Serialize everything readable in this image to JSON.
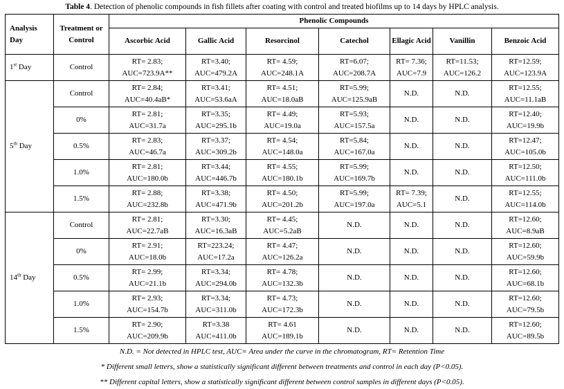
{
  "title": {
    "label": "Table 4",
    "text": ". Detection of phenolic compounds in fish fillets after coating with control and treated biofilms up to 14 days by HPLC analysis."
  },
  "headers": {
    "day": "Analysis Day",
    "treatment": "Treatment or Control",
    "group": "Phenolic Compounds",
    "compounds": [
      "Ascorbic Acid",
      "Gallic Acid",
      "Resorcinol",
      "Catechol",
      "Ellagic Acid",
      "Vanillin",
      "Benzoic Acid"
    ]
  },
  "groups": [
    {
      "day_num": "1",
      "day_sup": "st",
      "day_suffix": " Day",
      "rows": [
        {
          "treatment": "Control",
          "cells": [
            [
              "RT= 2.83;",
              "AUC=723.9A**"
            ],
            [
              "RT=3.40;",
              "AUC=479.2A"
            ],
            [
              "RT= 4.59;",
              "AUC=248.1A"
            ],
            [
              "RT=6.07;",
              "AUC=208.7A"
            ],
            [
              "RT= 7.36;",
              "AUC=7.9"
            ],
            [
              "RT=11.53;",
              "AUC=126.2"
            ],
            [
              "RT=12.59;",
              "AUC=123.9A"
            ]
          ]
        }
      ]
    },
    {
      "day_num": "5",
      "day_sup": "th",
      "day_suffix": " Day",
      "rows": [
        {
          "treatment": "Control",
          "cells": [
            [
              "RT= 2.84;",
              "AUC=40.4aB*"
            ],
            [
              "RT=3.41;",
              "AUC=53.6aA"
            ],
            [
              "RT= 4.51;",
              "AUC=18.0aB"
            ],
            [
              "RT=5.99;",
              "AUC=125.9aB"
            ],
            [
              "N.D."
            ],
            [
              "N.D."
            ],
            [
              "RT=12.55;",
              "AUC=11.1aB"
            ]
          ]
        },
        {
          "treatment": "0%",
          "cells": [
            [
              "RT= 2.81;",
              "AUC=31.7a"
            ],
            [
              "RT=3.35;",
              "AUC=295.1b"
            ],
            [
              "RT= 4.49;",
              "AUC=19.0a"
            ],
            [
              "RT=5.93;",
              "AUC=157.5a"
            ],
            [
              "N.D."
            ],
            [
              "N.D."
            ],
            [
              "RT=12.40;",
              "AUC=19.9b"
            ]
          ]
        },
        {
          "treatment": "0.5%",
          "cells": [
            [
              "RT= 2.83;",
              "AUC=46.7a"
            ],
            [
              "RT=3.37;",
              "AUC=309.2b"
            ],
            [
              "RT= 4.54;",
              "AUC=148.0a"
            ],
            [
              "RT=5.84;",
              "AUC=167.0a"
            ],
            [
              "N.D."
            ],
            [
              "N.D."
            ],
            [
              "RT=12.47;",
              "AUC=105.0b"
            ]
          ]
        },
        {
          "treatment": "1.0%",
          "cells": [
            [
              "RT= 2.81;",
              "AUC=180.0b"
            ],
            [
              "RT=3.44;",
              "AUC=446.7b"
            ],
            [
              "RT= 4.55;",
              "AUC=180.1b"
            ],
            [
              "RT=5.99;",
              "AUC=169.7b"
            ],
            [
              "N.D."
            ],
            [
              "N.D."
            ],
            [
              "RT=12.50;",
              "AUC=111.0b"
            ]
          ]
        },
        {
          "treatment": "1.5%",
          "cells": [
            [
              "RT= 2.88;",
              "AUC=232.8b"
            ],
            [
              "RT=3.38;",
              "AUC=471.9b"
            ],
            [
              "RT= 4.50;",
              "AUC=201.2b"
            ],
            [
              "RT=5.99;",
              "AUC=197.0a"
            ],
            [
              "RT= 7.39;",
              "AUC=5.1"
            ],
            [
              "N.D."
            ],
            [
              "RT=12.55;",
              "AUC=114.0b"
            ]
          ]
        }
      ]
    },
    {
      "day_num": "14",
      "day_sup": "th",
      "day_suffix": " Day",
      "rows": [
        {
          "treatment": "Control",
          "cells": [
            [
              "RT= 2.81;",
              "AUC=22.7aB"
            ],
            [
              "RT=3.30;",
              "AUC=16.3aB"
            ],
            [
              "RT= 4.45;",
              "AUC=5.2aB"
            ],
            [
              "N.D."
            ],
            [
              "N.D."
            ],
            [
              "N.D."
            ],
            [
              "RT=12.60;",
              "AUC=8.9aB"
            ]
          ]
        },
        {
          "treatment": "0%",
          "cells": [
            [
              "RT= 2.91;",
              "AUC=18.0b"
            ],
            [
              "RT=223.24;",
              "AUC=17.2a"
            ],
            [
              "RT= 4.47;",
              "AUC=126.2a"
            ],
            [
              "N.D."
            ],
            [
              "N.D."
            ],
            [
              "N.D."
            ],
            [
              "RT=12.60;",
              "AUC=59.9b"
            ]
          ]
        },
        {
          "treatment": "0.5%",
          "cells": [
            [
              "RT= 2.99;",
              "AUC=21.1b"
            ],
            [
              "RT=3.34;",
              "AUC=294.0b"
            ],
            [
              "RT= 4.78;",
              "AUC=132.3b"
            ],
            [
              "N.D."
            ],
            [
              "N.D."
            ],
            [
              "N.D."
            ],
            [
              "RT=12.60;",
              "AUC=68.1b"
            ]
          ]
        },
        {
          "treatment": "1.0%",
          "cells": [
            [
              "RT= 2.93;",
              "AUC=154.7b"
            ],
            [
              "RT=3.34;",
              "AUC=311.0b"
            ],
            [
              "RT= 4.73;",
              "AUC=172.3b"
            ],
            [
              "N.D."
            ],
            [
              "N.D."
            ],
            [
              "N.D."
            ],
            [
              "RT=12.60;",
              "AUC=79.5b"
            ]
          ]
        },
        {
          "treatment": "1.5%",
          "cells": [
            [
              "RT= 2.90;",
              "AUC=209.9b"
            ],
            [
              "RT=3.38",
              "AUC=411.0b"
            ],
            [
              "RT= 4.61",
              "AUC=189.1b"
            ],
            [
              "N.D."
            ],
            [
              "N.D."
            ],
            [
              "N.D."
            ],
            [
              "RT=12.60;",
              "AUC=89.5b"
            ]
          ]
        }
      ]
    }
  ],
  "footnotes": [
    "N.D. = Not detected in HPLC test, AUC= Area under the curve in the chromatogram, RT= Retention Time",
    "* Different small letters, show a statistically significant different between treatments and control in each day (P<0.05).",
    "** Different capital letters, show a statistically significant different between control samples in different days (P<0.05)."
  ]
}
